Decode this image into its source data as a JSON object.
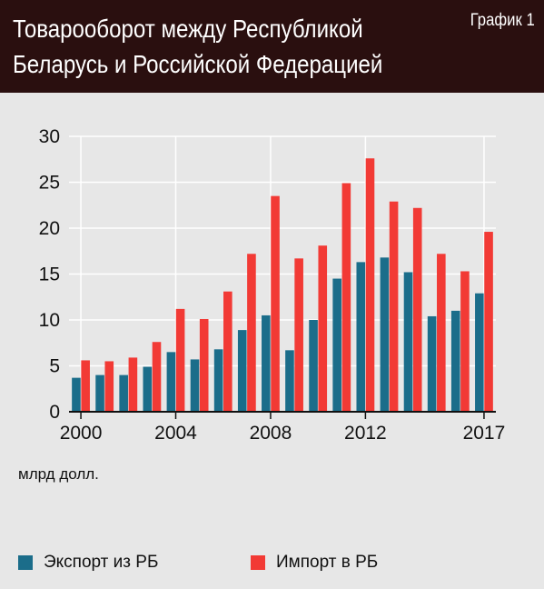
{
  "header": {
    "title_lines": [
      "Товарооборот между Республикой",
      "Беларусь и Российской Федерацией"
    ],
    "tag": "График 1"
  },
  "colors": {
    "export": "#1b6d8a",
    "import": "#f23a35",
    "header_bg": "#2a0f0f",
    "panel_bg": "#e7e7e7"
  },
  "chart_data": {
    "type": "bar",
    "categories": [
      "2000",
      "2001",
      "2002",
      "2003",
      "2004",
      "2005",
      "2006",
      "2007",
      "2008",
      "2009",
      "2010",
      "2011",
      "2012",
      "2013",
      "2014",
      "2015",
      "2016",
      "2017"
    ],
    "x_tick_labels": [
      "2000",
      "2004",
      "2008",
      "2012",
      "2017"
    ],
    "series": [
      {
        "name": "Экспорт из РБ",
        "values": [
          3.7,
          4.0,
          4.0,
          4.9,
          6.5,
          5.7,
          6.8,
          8.9,
          10.5,
          6.7,
          10.0,
          14.5,
          16.3,
          16.8,
          15.2,
          10.4,
          11.0,
          12.9
        ]
      },
      {
        "name": "Импорт в РБ",
        "values": [
          5.6,
          5.5,
          5.9,
          7.6,
          11.2,
          10.1,
          13.1,
          17.2,
          23.5,
          16.7,
          18.1,
          24.9,
          27.6,
          22.9,
          22.2,
          17.2,
          15.3,
          19.6
        ]
      }
    ],
    "ylim": [
      0,
      30
    ],
    "yticks": [
      0,
      5,
      10,
      15,
      20,
      25,
      30
    ],
    "grid": true,
    "unit_label": "млрд долл.",
    "legend_position": "bottom"
  }
}
